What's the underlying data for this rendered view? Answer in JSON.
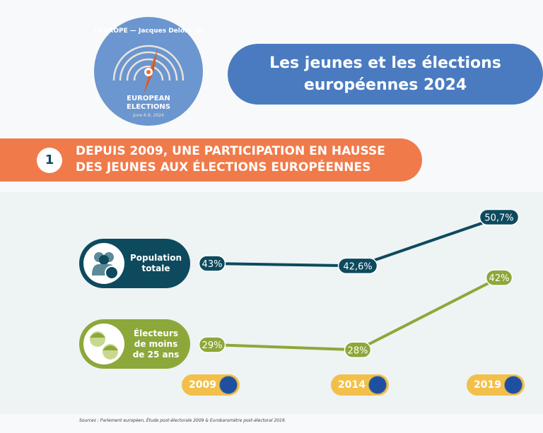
{
  "logo": {
    "top_text": "NOTRE EUROPE — Jacques Delors Institute",
    "line1": "EUROPEAN",
    "line2": "ELECTIONS",
    "date": "June 6-9, 2024"
  },
  "title": {
    "line1": "Les jeunes et les élections",
    "line2": "européennes 2024"
  },
  "section": {
    "number": "1",
    "line1": "DEPUIS 2009, UNE PARTICIPATION EN HAUSSE",
    "line2": "DES JEUNES AUX ÉLECTIONS EUROPÉENNES"
  },
  "chart_data": {
    "type": "line",
    "categories": [
      "2009",
      "2014",
      "2019"
    ],
    "series": [
      {
        "name": "Population totale",
        "values": [
          43,
          42.6,
          50.7
        ],
        "labels": [
          "43%",
          "42,6%",
          "50,7%"
        ],
        "color": "#0d4a5e"
      },
      {
        "name": "Électeurs de moins de 25 ans",
        "values": [
          29,
          28,
          42
        ],
        "labels": [
          "29%",
          "28%",
          "42%"
        ],
        "color": "#8ca83a"
      }
    ]
  },
  "categories": {
    "pop_line1": "Population",
    "pop_line2": "totale",
    "young_line1": "Électeurs",
    "young_line2": "de moins",
    "young_line3": "de 25 ans"
  },
  "source": "Sources : Parlement européen, Étude post-électorale 2009 & Eurobaromètre post-électoral 2019."
}
